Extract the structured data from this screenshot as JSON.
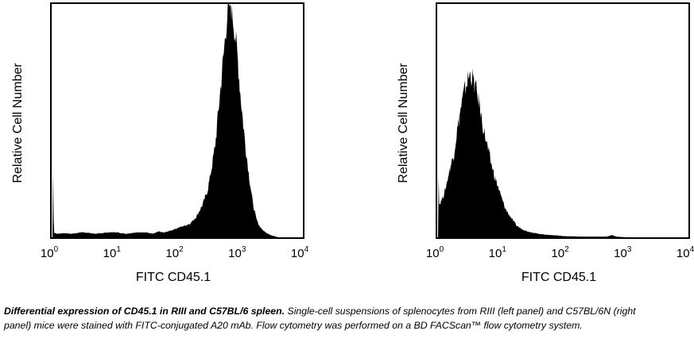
{
  "caption": {
    "bold": "Differential expression of CD45.1 in RIII and C57BL/6 spleen.",
    "text": "Single-cell suspensions of splenocytes from RIII (left panel) and C57BL/6N (right panel) mice were stained with FITC-conjugated A20 mAb. Flow cytometry was performed on a BD FACScan™ flow cytometry system."
  },
  "chart_data": [
    {
      "type": "area",
      "xlabel": "FITC CD45.1",
      "ylabel": "Relative Cell Number",
      "xscale": "log",
      "xlim": [
        1,
        10000
      ],
      "ylim": [
        0,
        100
      ],
      "xticks": [
        {
          "base": "10",
          "exp": "0"
        },
        {
          "base": "10",
          "exp": "1"
        },
        {
          "base": "10",
          "exp": "2"
        },
        {
          "base": "10",
          "exp": "3"
        },
        {
          "base": "10",
          "exp": "4"
        }
      ],
      "grid": false,
      "fill_color": "#000000",
      "x": [
        1,
        1.01,
        1.05,
        1.2,
        1.5,
        2,
        3,
        5,
        7,
        10,
        15,
        20,
        30,
        40,
        50,
        60,
        80,
        100,
        130,
        160,
        200,
        250,
        300,
        350,
        400,
        450,
        500,
        550,
        600,
        650,
        700,
        750,
        800,
        900,
        1000,
        1100,
        1200,
        1400,
        1600,
        1800,
        2000,
        2300,
        2600,
        3000,
        3500,
        4000,
        10000
      ],
      "y": [
        0,
        40,
        2,
        1.5,
        1.8,
        1.5,
        2.2,
        1.5,
        2,
        2.2,
        1.5,
        2,
        2.2,
        1.5,
        2.5,
        2,
        3,
        4,
        5,
        6,
        9,
        14,
        20,
        30,
        40,
        55,
        68,
        80,
        92,
        99,
        100,
        96,
        90,
        78,
        62,
        50,
        40,
        25,
        14,
        8,
        5,
        3,
        2,
        1,
        0.5,
        0,
        0
      ]
    },
    {
      "type": "area",
      "xlabel": "FITC CD45.1",
      "ylabel": "Relative Cell Number",
      "xscale": "log",
      "xlim": [
        1,
        10000
      ],
      "ylim": [
        0,
        100
      ],
      "xticks": [
        {
          "base": "10",
          "exp": "0"
        },
        {
          "base": "10",
          "exp": "1"
        },
        {
          "base": "10",
          "exp": "2"
        },
        {
          "base": "10",
          "exp": "3"
        },
        {
          "base": "10",
          "exp": "4"
        }
      ],
      "grid": false,
      "fill_color": "#000000",
      "x": [
        1,
        1.01,
        1.03,
        1.1,
        1.3,
        1.5,
        1.8,
        2,
        2.3,
        2.6,
        3,
        3.3,
        3.6,
        4,
        4.5,
        5,
        5.5,
        6,
        7,
        8,
        9,
        10,
        12,
        15,
        18,
        22,
        27,
        33,
        40,
        50,
        60,
        80,
        100,
        200,
        500,
        600,
        700,
        1000,
        10000
      ],
      "y": [
        0,
        50,
        14,
        15,
        20,
        28,
        36,
        45,
        55,
        62,
        68,
        70,
        68,
        64,
        58,
        50,
        45,
        40,
        32,
        26,
        22,
        18,
        12,
        8,
        5,
        3.5,
        2.5,
        2,
        1.5,
        1.2,
        1,
        0.8,
        0.5,
        0.3,
        0.3,
        1,
        0.3,
        0,
        0
      ]
    }
  ]
}
